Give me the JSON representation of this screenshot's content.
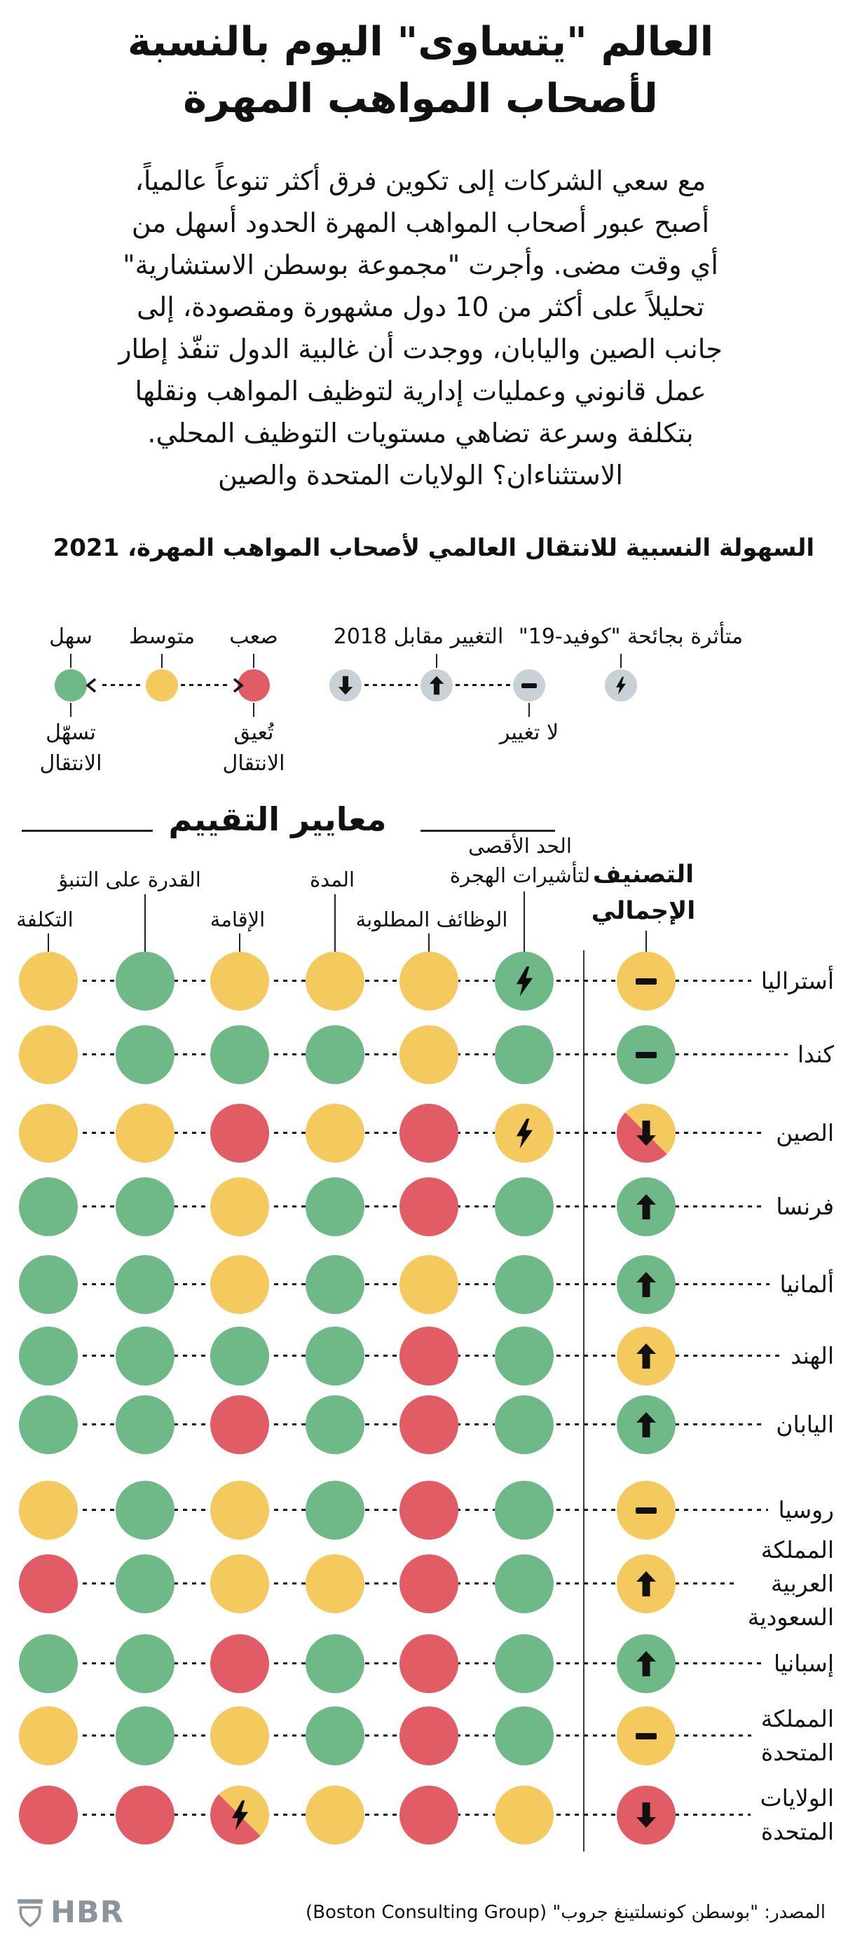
{
  "header": {
    "title": "العالم \"يتساوى\" اليوم بالنسبة\nلأصحاب المواهب المهرة",
    "intro": "مع سعي الشركات إلى تكوين فرق أكثر تنوعاً عالمياً،\nأصبح عبور أصحاب المواهب المهرة الحدود أسهل من\nأي وقت مضى. وأجرت \"مجموعة بوسطن الاستشارية\"\nتحليلاً على أكثر من 10 دول مشهورة ومقصودة، إلى\nجانب الصين واليابان، ووجدت أن غالبية الدول تنفّذ إطار\nعمل قانوني وعمليات إدارية لتوظيف المواهب ونقلها\nبتكلفة وسرعة تضاهي مستويات التوظيف المحلي.\nالاستثناءان؟ الولايات المتحدة والصين",
    "subtitle": "السهولة النسبية للانتقال العالمي لأصحاب المواهب المهرة، 2021"
  },
  "legend": {
    "difficulty_items": [
      {
        "label": "سهل",
        "sublabel": "تسهّل\nالانتقال",
        "color": "#6FB988"
      },
      {
        "label": "متوسط",
        "sublabel": "",
        "color": "#F4C95D"
      },
      {
        "label": "صعب",
        "sublabel": "تُعيق\nالانتقال",
        "color": "#E25C66"
      }
    ],
    "change_label": "التغيير مقابل 2018",
    "no_change_label": "لا تغيير",
    "covid_label": "متأثرة بجائحة \"كوفيد-19\""
  },
  "criteria": {
    "section_title": "معايير التقييم",
    "columns": [
      {
        "label": "التكلفة"
      },
      {
        "label": "القدرة على التنبؤ"
      },
      {
        "label": "الإقامة"
      },
      {
        "label": "المدة"
      },
      {
        "label": "الوظائف المطلوبة"
      },
      {
        "label": "الحد الأقصى\nلتأشيرات الهجرة"
      }
    ],
    "overall_label": "التصنيف\nالإجمالي"
  },
  "footer": {
    "brand": "HBR",
    "source": "المصدر: \"بوسطن كونسلتينغ جروب\" (Boston Consulting Group)"
  },
  "colors": {
    "easy_green": "#6FB988",
    "medium_yellow": "#F4C95D",
    "hard_red": "#E25C66",
    "legend_icon_circle": "#C8D1D6",
    "brand_gray": "#8D959C"
  },
  "chart_data": {
    "type": "heatmap",
    "title": "السهولة النسبية للانتقال العالمي لأصحاب المواهب المهرة، 2021",
    "value_scale": {
      "green": "سهل — تسهّل الانتقال",
      "yellow": "متوسط",
      "red": "صعب — تُعيق الانتقال",
      "yellow-red": "بين متوسط وصعب"
    },
    "markers": {
      "covid": "متأثرة بجائحة \"كوفيد-19\"",
      "change_vs": "التغيير مقابل 2018",
      "no-change": "لا تغيير"
    },
    "columns": [
      "التكلفة",
      "القدرة على التنبؤ",
      "الإقامة",
      "المدة",
      "الوظائف المطلوبة",
      "الحد الأقصى لتأشيرات الهجرة"
    ],
    "overall_column": "التصنيف الإجمالي",
    "rows": [
      {
        "country": "أستراليا",
        "cells": [
          {
            "c": "yellow"
          },
          {
            "c": "green"
          },
          {
            "c": "yellow"
          },
          {
            "c": "yellow"
          },
          {
            "c": "yellow"
          },
          {
            "c": "green",
            "covid": true
          }
        ],
        "overall": {
          "c": "yellow",
          "change": "no-change"
        }
      },
      {
        "country": "كندا",
        "cells": [
          {
            "c": "yellow"
          },
          {
            "c": "green"
          },
          {
            "c": "green"
          },
          {
            "c": "green"
          },
          {
            "c": "yellow"
          },
          {
            "c": "green"
          }
        ],
        "overall": {
          "c": "green",
          "change": "no-change"
        }
      },
      {
        "country": "الصين",
        "cells": [
          {
            "c": "yellow"
          },
          {
            "c": "yellow"
          },
          {
            "c": "red"
          },
          {
            "c": "yellow"
          },
          {
            "c": "red"
          },
          {
            "c": "yellow",
            "covid": true
          }
        ],
        "overall": {
          "c": "yellow-red",
          "change": "down"
        }
      },
      {
        "country": "فرنسا",
        "cells": [
          {
            "c": "green"
          },
          {
            "c": "green"
          },
          {
            "c": "yellow"
          },
          {
            "c": "green"
          },
          {
            "c": "red"
          },
          {
            "c": "green"
          }
        ],
        "overall": {
          "c": "green",
          "change": "up"
        }
      },
      {
        "country": "ألمانيا",
        "cells": [
          {
            "c": "green"
          },
          {
            "c": "green"
          },
          {
            "c": "yellow"
          },
          {
            "c": "green"
          },
          {
            "c": "yellow"
          },
          {
            "c": "green"
          }
        ],
        "overall": {
          "c": "green",
          "change": "up"
        }
      },
      {
        "country": "الهند",
        "cells": [
          {
            "c": "green"
          },
          {
            "c": "green"
          },
          {
            "c": "green"
          },
          {
            "c": "green"
          },
          {
            "c": "red"
          },
          {
            "c": "green"
          }
        ],
        "overall": {
          "c": "yellow",
          "change": "up"
        }
      },
      {
        "country": "اليابان",
        "cells": [
          {
            "c": "green"
          },
          {
            "c": "green"
          },
          {
            "c": "red"
          },
          {
            "c": "green"
          },
          {
            "c": "red"
          },
          {
            "c": "green"
          }
        ],
        "overall": {
          "c": "green",
          "change": "up"
        }
      },
      {
        "country": "روسيا",
        "cells": [
          {
            "c": "yellow"
          },
          {
            "c": "green"
          },
          {
            "c": "yellow"
          },
          {
            "c": "green"
          },
          {
            "c": "red"
          },
          {
            "c": "green"
          }
        ],
        "overall": {
          "c": "yellow",
          "change": "no-change"
        }
      },
      {
        "country": "المملكة العربية السعودية",
        "label_lines": "المملكة\nالعربية\nالسعودية",
        "cells": [
          {
            "c": "red"
          },
          {
            "c": "green"
          },
          {
            "c": "yellow"
          },
          {
            "c": "yellow"
          },
          {
            "c": "red"
          },
          {
            "c": "green"
          }
        ],
        "overall": {
          "c": "yellow",
          "change": "up"
        }
      },
      {
        "country": "إسبانيا",
        "cells": [
          {
            "c": "green"
          },
          {
            "c": "green"
          },
          {
            "c": "red"
          },
          {
            "c": "green"
          },
          {
            "c": "red"
          },
          {
            "c": "green"
          }
        ],
        "overall": {
          "c": "green",
          "change": "up"
        }
      },
      {
        "country": "المملكة المتحدة",
        "label_lines": "المملكة\nالمتحدة",
        "cells": [
          {
            "c": "yellow"
          },
          {
            "c": "green"
          },
          {
            "c": "yellow"
          },
          {
            "c": "green"
          },
          {
            "c": "red"
          },
          {
            "c": "green"
          }
        ],
        "overall": {
          "c": "yellow",
          "change": "no-change"
        }
      },
      {
        "country": "الولايات المتحدة",
        "label_lines": "الولايات\nالمتحدة",
        "cells": [
          {
            "c": "red"
          },
          {
            "c": "red"
          },
          {
            "c": "yellow-red",
            "covid": true
          },
          {
            "c": "yellow"
          },
          {
            "c": "red"
          },
          {
            "c": "yellow"
          }
        ],
        "overall": {
          "c": "red",
          "change": "down"
        }
      }
    ]
  }
}
